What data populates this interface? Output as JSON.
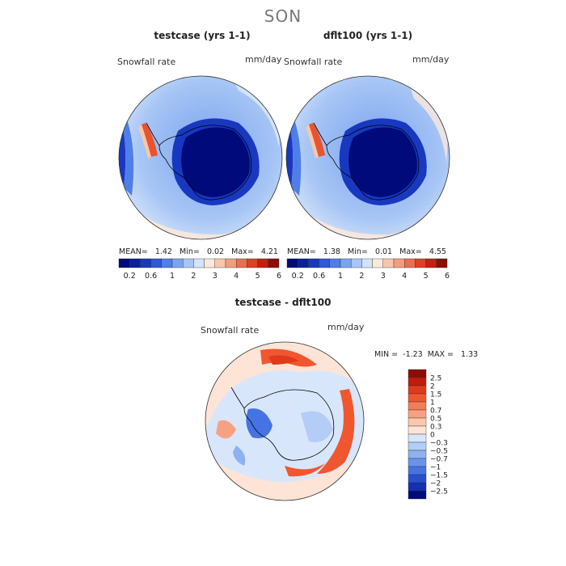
{
  "page": {
    "title": "SON"
  },
  "panels": [
    {
      "title": "testcase (yrs 1-1)",
      "variable": "Snowfall rate",
      "units": "mm/day",
      "stats": {
        "mean_label": "MEAN=",
        "mean": "1.42",
        "min_label": "Min=",
        "min": "0.02",
        "max_label": "Max=",
        "max": "4.21"
      }
    },
    {
      "title": "dflt100 (yrs 1-1)",
      "variable": "Snowfall rate",
      "units": "mm/day",
      "stats": {
        "mean_label": "MEAN=",
        "mean": "1.38",
        "min_label": "Min=",
        "min": "0.01",
        "max_label": "Max=",
        "max": "4.55"
      }
    }
  ],
  "diff_panel": {
    "title": "testcase - dflt100",
    "variable": "Snowfall rate",
    "units": "mm/day",
    "stats": {
      "min_label": "MIN =",
      "min": "-1.23",
      "max_label": "MAX =",
      "max": "1.33"
    }
  },
  "colorbars": {
    "absolute": {
      "colors": [
        "#000a7a",
        "#0a1f9c",
        "#1838c0",
        "#2f59d9",
        "#4f7ee8",
        "#7aa3f0",
        "#a8c6f5",
        "#d3e3f9",
        "#fbe8dd",
        "#f7c7ad",
        "#f29d7d",
        "#eb6e4f",
        "#de4026",
        "#c51f10",
        "#8e0d06"
      ],
      "tick_labels": [
        "0.2",
        "0.6",
        "1",
        "2",
        "3",
        "4",
        "5",
        "6"
      ]
    },
    "difference": {
      "colors": [
        "#8e0d06",
        "#c01c0c",
        "#e03a1c",
        "#f0572f",
        "#f57c55",
        "#f8a182",
        "#fbc7ae",
        "#fde4d6",
        "#d8e6fb",
        "#b3cdf6",
        "#8eb1f0",
        "#6a93ea",
        "#4673e3",
        "#2750cf",
        "#1230b0",
        "#000a7a"
      ],
      "tick_labels": [
        "2.5",
        "2",
        "1.5",
        "1",
        "0.7",
        "0.5",
        "0.3",
        "0",
        "−0.3",
        "−0.5",
        "−0.7",
        "−1",
        "−1.5",
        "−2",
        "−2.5"
      ]
    }
  },
  "map_colors": {
    "ocean_light": "#b9d2f6",
    "ocean_mid": "#7aa3f0",
    "antarctic_dark": "#000a7a",
    "antarctic_mid": "#1838c0",
    "coast_red": "#e8542f",
    "diff_bg": "#d8e6fb",
    "diff_red": "#f0572f",
    "diff_blue": "#4673e3",
    "coastline": "#000000"
  }
}
